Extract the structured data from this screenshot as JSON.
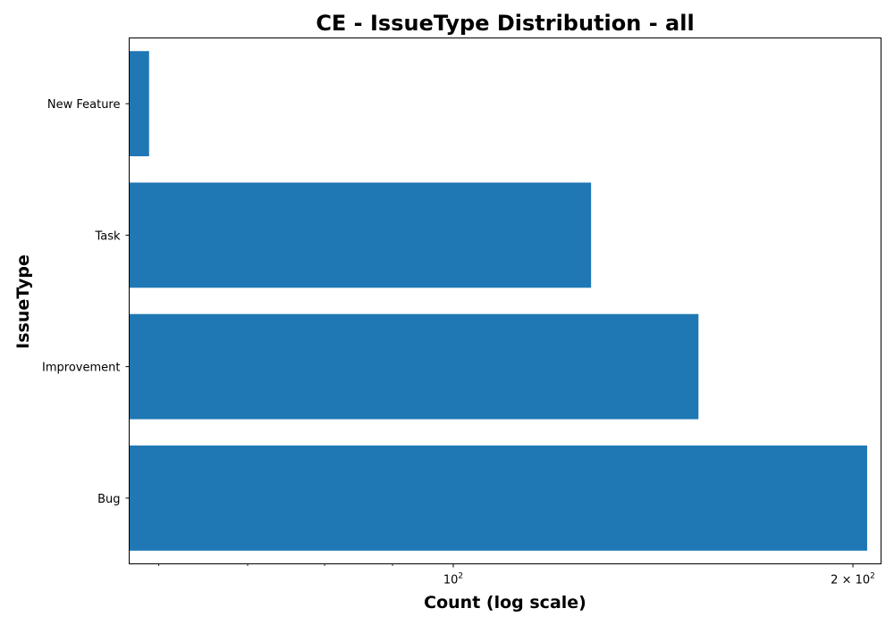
{
  "chart_data": {
    "type": "bar",
    "orientation": "horizontal",
    "title": "CE - IssueType Distribution - all",
    "xlabel": "Count (log scale)",
    "ylabel": "IssueType",
    "xscale": "log",
    "xlim": [
      57,
      210
    ],
    "categories": [
      "Bug",
      "Improvement",
      "Task",
      "New Feature"
    ],
    "values": [
      205,
      153,
      127,
      59
    ],
    "bar_color": "#1f77b4",
    "x_ticks": [
      {
        "value": 100,
        "base": "10",
        "exp": "2",
        "coef": ""
      },
      {
        "value": 200,
        "base": "10",
        "exp": "2",
        "coef": "2 × "
      }
    ],
    "x_minor_ticks": [
      60,
      70,
      80,
      90
    ],
    "grid": false,
    "legend": "none"
  }
}
